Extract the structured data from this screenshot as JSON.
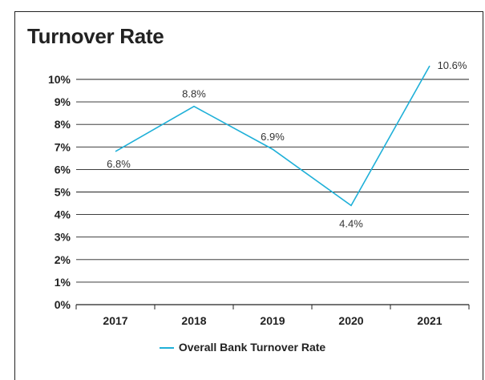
{
  "chart_data": {
    "type": "line",
    "title": "Turnover Rate",
    "categories": [
      "2017",
      "2018",
      "2019",
      "2020",
      "2021"
    ],
    "series": [
      {
        "name": "Overall Bank Turnover Rate",
        "values": [
          6.8,
          8.8,
          6.9,
          4.4,
          10.6
        ],
        "labels": [
          "6.8%",
          "8.8%",
          "6.9%",
          "4.4%",
          "10.6%"
        ],
        "color": "#1fb0d8"
      }
    ],
    "y_ticks": [
      "0%",
      "1%",
      "2%",
      "3%",
      "4%",
      "5%",
      "6%",
      "7%",
      "8%",
      "9%",
      "10%"
    ],
    "ylim": [
      0,
      10
    ],
    "grid": true,
    "legend": "bottom"
  }
}
